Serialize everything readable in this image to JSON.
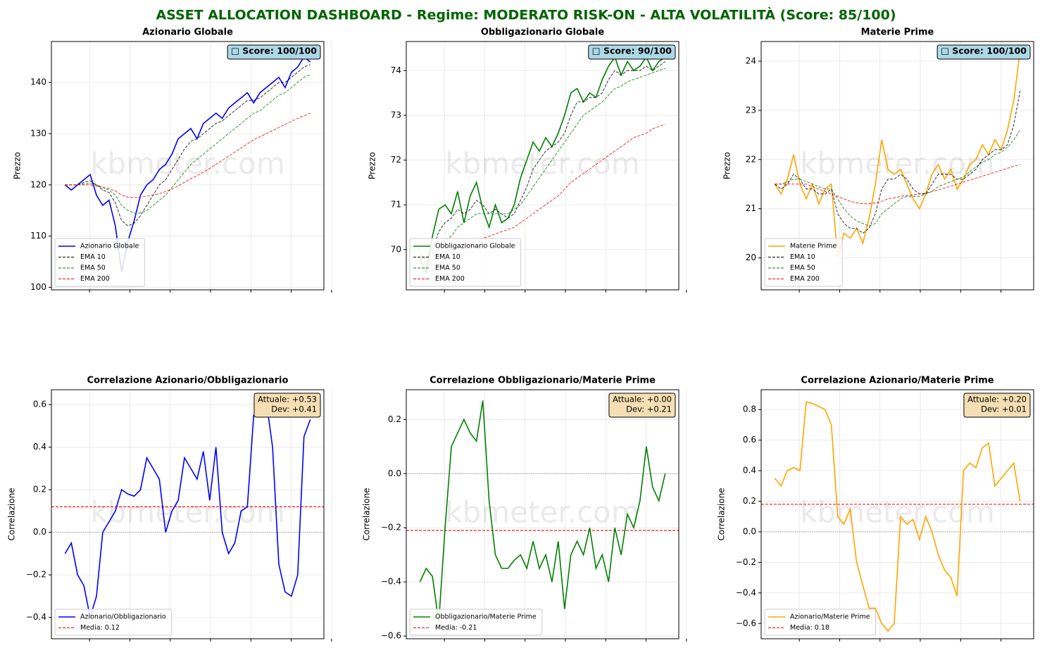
{
  "title": "ASSET ALLOCATION DASHBOARD - Regime: MODERATO RISK-ON - ALTA VOLATILITÀ (Score: 85/100)",
  "chart_data": [
    {
      "type": "line",
      "title": "Azionario Globale",
      "ylabel": "Prezzo",
      "watermark": "kbmeter.com",
      "annotation": [
        "□ Score: 100/100"
      ],
      "annotation_color": "#add8e6",
      "legend": "lower left",
      "grid": true,
      "ylim": [
        99.5,
        148
      ],
      "yticks": [
        100,
        110,
        120,
        130,
        140
      ],
      "series": [
        {
          "name": "Azionario Globale",
          "color": "#0000ff",
          "linestyle": "solid",
          "values": [
            120,
            119,
            120,
            121,
            122,
            118,
            116,
            117,
            112,
            103,
            109,
            113,
            118,
            120,
            121,
            123,
            124,
            126,
            129,
            130,
            131,
            129,
            132,
            133,
            134,
            133,
            135,
            136,
            137,
            138,
            136,
            138,
            139,
            140,
            141,
            139,
            142,
            143,
            145,
            144
          ]
        },
        {
          "name": "EMA 10",
          "color": "#000000",
          "linestyle": "dashed",
          "values": [
            120,
            120,
            120,
            120.5,
            120.8,
            120,
            119,
            118.5,
            116.5,
            113,
            112,
            112.5,
            114,
            116,
            118,
            120,
            121,
            123,
            125,
            127,
            128.5,
            129,
            130,
            131,
            132,
            132.5,
            133.5,
            134.5,
            135.5,
            136.5,
            136.5,
            137,
            138,
            139,
            140,
            140,
            141,
            142,
            143,
            143.5
          ]
        },
        {
          "name": "EMA 50",
          "color": "#008000",
          "linestyle": "dashed",
          "values": [
            120,
            120,
            120,
            120.2,
            120.3,
            120,
            119.5,
            119,
            118,
            116,
            115,
            114.5,
            114.5,
            115,
            116,
            117,
            118,
            119.5,
            121,
            122.5,
            124,
            125,
            126,
            127,
            128,
            129,
            130,
            131,
            132,
            133,
            134,
            134.5,
            135.5,
            136.5,
            137.5,
            138,
            139,
            140,
            141,
            141.5
          ]
        },
        {
          "name": "EMA 200",
          "color": "#ff0000",
          "linestyle": "dashed",
          "values": [
            120,
            120,
            120,
            120,
            120,
            119.8,
            119.5,
            119.3,
            118.8,
            118,
            117.6,
            117.5,
            117.6,
            117.8,
            118,
            118.3,
            118.7,
            119.2,
            119.8,
            120.5,
            121.2,
            121.8,
            122.5,
            123.2,
            124,
            124.8,
            125.6,
            126.4,
            127.2,
            128,
            128.8,
            129.4,
            130,
            130.6,
            131.2,
            131.8,
            132.4,
            133,
            133.5,
            134
          ]
        }
      ]
    },
    {
      "type": "line",
      "title": "Obbligazionario Globale",
      "ylabel": "Prezzo",
      "watermark": "kbmeter.com",
      "annotation": [
        "□ Score: 90/100"
      ],
      "annotation_color": "#add8e6",
      "legend": "lower left",
      "grid": true,
      "ylim": [
        69.1,
        74.65
      ],
      "yticks": [
        70,
        71,
        72,
        73,
        74
      ],
      "series": [
        {
          "name": "Obbligazionario Globale",
          "color": "#008000",
          "linestyle": "solid",
          "values": [
            69.8,
            69.5,
            70.3,
            70.9,
            71.0,
            70.8,
            71.3,
            70.6,
            71.2,
            71.5,
            70.9,
            70.5,
            71.0,
            70.6,
            70.7,
            71.0,
            71.6,
            72.0,
            72.4,
            72.2,
            72.5,
            72.3,
            72.6,
            73.0,
            73.5,
            73.6,
            73.3,
            73.5,
            73.4,
            73.8,
            74.1,
            74.3,
            73.9,
            74.2,
            74.0,
            74.1,
            74.3,
            74.0,
            74.2,
            74.3
          ]
        },
        {
          "name": "EMA 10",
          "color": "#000000",
          "linestyle": "dashed",
          "values": [
            69.9,
            69.8,
            70.0,
            70.4,
            70.6,
            70.7,
            70.9,
            70.8,
            70.9,
            71.1,
            71.0,
            70.8,
            70.9,
            70.8,
            70.7,
            70.8,
            71.1,
            71.4,
            71.8,
            72.0,
            72.2,
            72.3,
            72.4,
            72.6,
            73.0,
            73.3,
            73.3,
            73.4,
            73.4,
            73.5,
            73.8,
            74.0,
            73.9,
            74.0,
            74.0,
            74.0,
            74.1,
            74.0,
            74.1,
            74.2
          ]
        },
        {
          "name": "EMA 50",
          "color": "#008000",
          "linestyle": "dashed",
          "values": [
            69.8,
            69.8,
            69.9,
            70.0,
            70.2,
            70.3,
            70.5,
            70.6,
            70.7,
            70.8,
            70.8,
            70.8,
            70.8,
            70.8,
            70.8,
            70.9,
            71.0,
            71.2,
            71.4,
            71.6,
            71.8,
            72.0,
            72.2,
            72.4,
            72.6,
            72.8,
            73.0,
            73.1,
            73.2,
            73.3,
            73.45,
            73.6,
            73.65,
            73.75,
            73.8,
            73.85,
            73.9,
            73.95,
            74.0,
            74.05
          ]
        },
        {
          "name": "EMA 200",
          "color": "#ff0000",
          "linestyle": "dashed",
          "values": [
            69.8,
            69.8,
            69.85,
            69.9,
            69.95,
            70.0,
            70.05,
            70.1,
            70.15,
            70.2,
            70.25,
            70.3,
            70.35,
            70.4,
            70.45,
            70.5,
            70.6,
            70.7,
            70.8,
            70.9,
            71.0,
            71.1,
            71.2,
            71.35,
            71.5,
            71.6,
            71.7,
            71.8,
            71.9,
            72.0,
            72.1,
            72.2,
            72.3,
            72.4,
            72.5,
            72.55,
            72.6,
            72.7,
            72.75,
            72.8
          ]
        }
      ]
    },
    {
      "type": "line",
      "title": "Materie Prime",
      "ylabel": "Prezzo",
      "watermark": "kbmeter.com",
      "annotation": [
        "□ Score: 100/100"
      ],
      "annotation_color": "#add8e6",
      "legend": "lower left",
      "grid": true,
      "ylim": [
        19.35,
        24.4
      ],
      "yticks": [
        20,
        21,
        22,
        23,
        24
      ],
      "series": [
        {
          "name": "Materie Prime",
          "color": "#ffa500",
          "linestyle": "solid",
          "values": [
            21.5,
            21.3,
            21.6,
            22.1,
            21.5,
            21.2,
            21.5,
            21.1,
            21.4,
            21.5,
            20.0,
            20.5,
            20.4,
            20.6,
            20.3,
            20.8,
            21.5,
            22.4,
            21.8,
            21.7,
            21.8,
            21.5,
            21.2,
            21.0,
            21.3,
            21.7,
            21.9,
            21.6,
            21.8,
            21.4,
            21.6,
            21.9,
            22.0,
            22.3,
            22.1,
            22.4,
            22.2,
            22.6,
            23.2,
            24.2
          ]
        },
        {
          "name": "EMA 10",
          "color": "#000000",
          "linestyle": "dashed",
          "values": [
            21.5,
            21.4,
            21.5,
            21.7,
            21.6,
            21.4,
            21.4,
            21.3,
            21.3,
            21.4,
            20.9,
            20.7,
            20.6,
            20.6,
            20.5,
            20.6,
            20.9,
            21.4,
            21.6,
            21.6,
            21.7,
            21.6,
            21.4,
            21.3,
            21.3,
            21.5,
            21.7,
            21.7,
            21.7,
            21.6,
            21.6,
            21.7,
            21.8,
            22.0,
            22.1,
            22.2,
            22.2,
            22.3,
            22.7,
            23.4
          ]
        },
        {
          "name": "EMA 50",
          "color": "#008000",
          "linestyle": "dashed",
          "values": [
            21.5,
            21.5,
            21.55,
            21.6,
            21.6,
            21.55,
            21.5,
            21.45,
            21.4,
            21.4,
            21.2,
            21.0,
            20.85,
            20.75,
            20.7,
            20.65,
            20.7,
            20.9,
            21.0,
            21.1,
            21.2,
            21.25,
            21.25,
            21.25,
            21.3,
            21.35,
            21.45,
            21.5,
            21.55,
            21.6,
            21.65,
            21.75,
            21.85,
            21.95,
            22.0,
            22.1,
            22.15,
            22.25,
            22.4,
            22.6
          ]
        },
        {
          "name": "EMA 200",
          "color": "#ff0000",
          "linestyle": "dashed",
          "values": [
            21.5,
            21.5,
            21.5,
            21.5,
            21.5,
            21.5,
            21.45,
            21.4,
            21.35,
            21.3,
            21.25,
            21.2,
            21.15,
            21.12,
            21.1,
            21.1,
            21.12,
            21.15,
            21.2,
            21.22,
            21.25,
            21.27,
            21.28,
            21.3,
            21.32,
            21.35,
            21.38,
            21.42,
            21.46,
            21.5,
            21.54,
            21.58,
            21.62,
            21.66,
            21.7,
            21.74,
            21.78,
            21.82,
            21.86,
            21.9
          ]
        }
      ]
    },
    {
      "type": "line",
      "title": "Correlazione Azionario/Obbligazionario",
      "ylabel": "Correlazione",
      "watermark": "kbmeter.com",
      "annotation": [
        "Attuale: +0.53",
        "Dev: +0.41"
      ],
      "annotation_color": "#f5deb3",
      "legend": "lower left",
      "grid": true,
      "ylim": [
        -0.5,
        0.67
      ],
      "yticks": [
        {
          "value": -0.4,
          "label": "−0.4"
        },
        {
          "value": -0.2,
          "label": "−0.2"
        },
        {
          "value": 0,
          "label": "0.0"
        },
        0.2,
        0.4,
        0.6
      ],
      "series": [
        {
          "name": "Azionario/Obbligazionario",
          "color": "#0000ff",
          "linestyle": "solid",
          "values": [
            -0.1,
            -0.05,
            -0.2,
            -0.25,
            -0.4,
            -0.3,
            0.0,
            0.05,
            0.1,
            0.2,
            0.18,
            0.17,
            0.2,
            0.35,
            0.3,
            0.25,
            0.0,
            0.1,
            0.15,
            0.35,
            0.3,
            0.25,
            0.38,
            0.15,
            0.4,
            0.0,
            -0.1,
            -0.05,
            0.1,
            0.12,
            0.55,
            0.57,
            0.62,
            0.4,
            -0.15,
            -0.28,
            -0.3,
            -0.2,
            0.45,
            0.53
          ]
        }
      ],
      "ref_lines": [
        {
          "name": "Media: 0.12",
          "value": 0.12,
          "color": "#ff0000",
          "linestyle": "dashed"
        },
        {
          "value": 0,
          "color": "#808080",
          "linestyle": "dotted"
        }
      ]
    },
    {
      "type": "line",
      "title": "Correlazione Obbligazionario/Materie Prime",
      "ylabel": "Correlazione",
      "watermark": "kbmeter.com",
      "annotation": [
        "Attuale: +0.00",
        "Dev: +0.21"
      ],
      "annotation_color": "#f5deb3",
      "legend": "lower left",
      "grid": true,
      "ylim": [
        -0.61,
        0.31
      ],
      "yticks": [
        {
          "value": -0.6,
          "label": "−0.6"
        },
        {
          "value": -0.4,
          "label": "−0.4"
        },
        {
          "value": -0.2,
          "label": "−0.2"
        },
        {
          "value": 0,
          "label": "0.0"
        },
        0.2
      ],
      "series": [
        {
          "name": "Obbligazionario/Materie Prime",
          "color": "#008000",
          "linestyle": "solid",
          "values": [
            -0.4,
            -0.35,
            -0.38,
            -0.55,
            -0.2,
            0.1,
            0.15,
            0.2,
            0.15,
            0.12,
            0.27,
            -0.1,
            -0.3,
            -0.35,
            -0.35,
            -0.32,
            -0.3,
            -0.35,
            -0.25,
            -0.35,
            -0.3,
            -0.4,
            -0.25,
            -0.5,
            -0.3,
            -0.25,
            -0.3,
            -0.2,
            -0.35,
            -0.3,
            -0.4,
            -0.2,
            -0.3,
            -0.15,
            -0.2,
            -0.1,
            0.1,
            -0.05,
            -0.1,
            0.0
          ]
        }
      ],
      "ref_lines": [
        {
          "name": "Media: -0.21",
          "value": -0.21,
          "color": "#ff0000",
          "linestyle": "dashed"
        },
        {
          "value": 0,
          "color": "#808080",
          "linestyle": "dotted"
        }
      ]
    },
    {
      "type": "line",
      "title": "Correlazione Azionario/Materie Prime",
      "ylabel": "Correlazione",
      "watermark": "kbmeter.com",
      "annotation": [
        "Attuale: +0.20",
        "Dev: +0.01"
      ],
      "annotation_color": "#f5deb3",
      "legend": "lower left",
      "grid": true,
      "ylim": [
        -0.7,
        0.93
      ],
      "yticks": [
        {
          "value": -0.6,
          "label": "−0.6"
        },
        {
          "value": -0.4,
          "label": "−0.4"
        },
        {
          "value": -0.2,
          "label": "−0.2"
        },
        {
          "value": 0,
          "label": "0.0"
        },
        0.2,
        0.4,
        0.6,
        0.8
      ],
      "series": [
        {
          "name": "Azionario/Materie Prime",
          "color": "#ffa500",
          "linestyle": "solid",
          "values": [
            0.35,
            0.3,
            0.4,
            0.42,
            0.4,
            0.85,
            0.84,
            0.82,
            0.8,
            0.7,
            0.1,
            0.05,
            0.15,
            -0.2,
            -0.35,
            -0.5,
            -0.5,
            -0.6,
            -0.65,
            -0.6,
            0.1,
            0.05,
            0.08,
            -0.05,
            0.1,
            0.0,
            -0.15,
            -0.25,
            -0.3,
            -0.42,
            0.4,
            0.45,
            0.42,
            0.55,
            0.58,
            0.3,
            0.35,
            0.4,
            0.45,
            0.2
          ]
        }
      ],
      "ref_lines": [
        {
          "name": "Media: 0.18",
          "value": 0.18,
          "color": "#ff0000",
          "linestyle": "dashed"
        },
        {
          "value": 0,
          "color": "#808080",
          "linestyle": "dotted"
        }
      ]
    }
  ]
}
